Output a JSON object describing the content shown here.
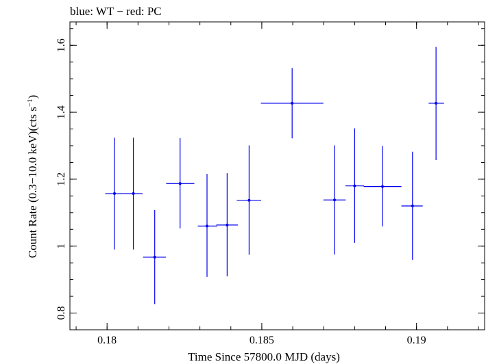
{
  "chart_data": {
    "type": "scatter",
    "title": "blue: WT − red: PC",
    "xlabel": "Time Since 57800.0 MJD (days)",
    "ylabel_main": "Count Rate (0.3−10.0 keV)(cts s",
    "ylabel_sup": "−1",
    "ylabel_end": ")",
    "xlim": [
      0.1788,
      0.1922
    ],
    "ylim": [
      0.75,
      1.67
    ],
    "x_ticks": [
      0.18,
      0.185,
      0.19
    ],
    "x_tick_labels": [
      "0.18",
      "0.185",
      "0.19"
    ],
    "y_ticks": [
      0.8,
      1.0,
      1.2,
      1.4,
      1.6
    ],
    "y_tick_labels": [
      "0.8",
      "1",
      "1.2",
      "1.4",
      "1.6"
    ],
    "grid": false,
    "series": [
      {
        "color": "#0000ee",
        "points": [
          {
            "x": 0.18024,
            "xerr": [
              0.0003,
              0.00028
            ],
            "y": 1.157,
            "yerr": [
              0.167,
              0.167
            ]
          },
          {
            "x": 0.18085,
            "xerr": [
              0.00033,
              0.0003
            ],
            "y": 1.157,
            "yerr": [
              0.167,
              0.167
            ]
          },
          {
            "x": 0.18154,
            "xerr": [
              0.00038,
              0.00036
            ],
            "y": 0.967,
            "yerr": [
              0.14,
              0.141
            ]
          },
          {
            "x": 0.18236,
            "xerr": [
              0.00045,
              0.00046
            ],
            "y": 1.187,
            "yerr": [
              0.134,
              0.136
            ]
          },
          {
            "x": 0.18323,
            "xerr": [
              0.0003,
              0.00033
            ],
            "y": 1.06,
            "yerr": [
              0.152,
              0.156
            ]
          },
          {
            "x": 0.18388,
            "xerr": [
              0.00035,
              0.00035
            ],
            "y": 1.063,
            "yerr": [
              0.153,
              0.155
            ]
          },
          {
            "x": 0.18459,
            "xerr": [
              0.0004,
              0.00039
            ],
            "y": 1.137,
            "yerr": [
              0.163,
              0.164
            ]
          },
          {
            "x": 0.18598,
            "xerr": [
              0.00101,
              0.00101
            ],
            "y": 1.427,
            "yerr": [
              0.105,
              0.105
            ]
          },
          {
            "x": 0.18735,
            "xerr": [
              0.00036,
              0.00036
            ],
            "y": 1.138,
            "yerr": [
              0.163,
              0.163
            ]
          },
          {
            "x": 0.188,
            "xerr": [
              0.0003,
              0.0003
            ],
            "y": 1.18,
            "yerr": [
              0.17,
              0.172
            ]
          },
          {
            "x": 0.1889,
            "xerr": [
              0.00061,
              0.00061
            ],
            "y": 1.178,
            "yerr": [
              0.119,
              0.121
            ]
          },
          {
            "x": 0.18987,
            "xerr": [
              0.00036,
              0.00033
            ],
            "y": 1.12,
            "yerr": [
              0.161,
              0.162
            ]
          },
          {
            "x": 0.19063,
            "xerr": [
              0.00024,
              0.00026
            ],
            "y": 1.427,
            "yerr": [
              0.17,
              0.168
            ]
          }
        ]
      }
    ]
  }
}
